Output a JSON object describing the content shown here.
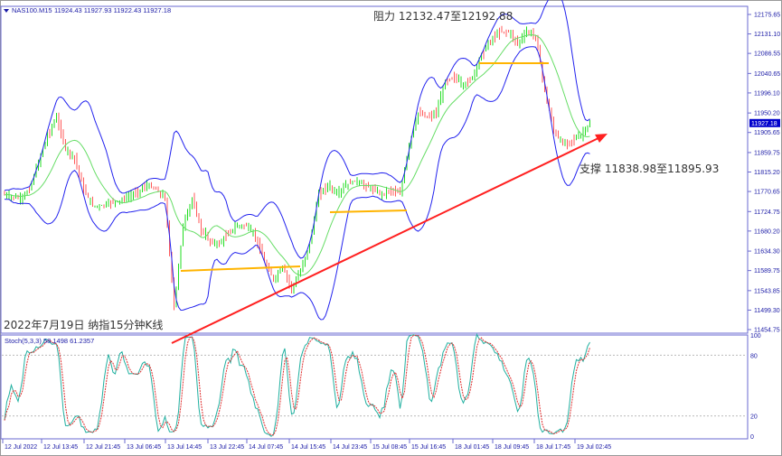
{
  "header": {
    "symbol": "NAS100.M15",
    "ohlc": "11924.43 11927.93 11922.43 11927.18"
  },
  "colors": {
    "bull": "#22dd22",
    "bear": "#ff5a5a",
    "bands": "#2222ee",
    "axis": "#1a1aa6",
    "trend": "#ff2020",
    "level": "#ffb400",
    "stoch_main": "#20b0a0",
    "stoch_signal": "#e03030"
  },
  "chart_data": {
    "type": "candlestick",
    "title": "2022年7月19日 纳指15分钟K线",
    "price_ticks": [
      "12175.65",
      "12131.10",
      "12086.55",
      "12040.65",
      "11996.10",
      "11950.20",
      "11905.65",
      "11859.75",
      "11815.20",
      "11770.65",
      "11724.75",
      "11680.20",
      "11634.30",
      "11589.75",
      "11543.85",
      "11499.30",
      "11454.75"
    ],
    "ylim": [
      11454.75,
      12175.65
    ],
    "current_price": "11927.18",
    "time_ticks": [
      "12 Jul 2022",
      "12 Jul 13:45",
      "12 Jul 21:45",
      "13 Jul 06:45",
      "13 Jul 14:45",
      "13 Jul 22:45",
      "14 Jul 07:45",
      "14 Jul 15:45",
      "14 Jul 23:45",
      "15 Jul 08:45",
      "15 Jul 16:45",
      "18 Jul 01:45",
      "18 Jul 09:45",
      "18 Jul 17:45",
      "19 Jul 02:45"
    ],
    "closes": [
      11764.5,
      11758.4,
      11754.3,
      11774.9,
      11836.9,
      11898.9,
      11940.2,
      11867.9,
      11847.2,
      11774.9,
      11737.7,
      11737.7,
      11746.0,
      11750.1,
      11758.4,
      11770.7,
      11785.2,
      11774.9,
      11754.3,
      11506.4,
      11692.3,
      11754.3,
      11682.0,
      11655.1,
      11651.0,
      11675.8,
      11692.3,
      11692.3,
      11667.5,
      11609.6,
      11568.4,
      11599.3,
      11547.7,
      11589.0,
      11651.0,
      11764.5,
      11785.2,
      11764.5,
      11785.2,
      11795.6,
      11785.2,
      11774.9,
      11764.5,
      11774.9,
      11764.5,
      11878.2,
      11950.5,
      11940.2,
      11950.5,
      12022.8,
      12033.1,
      12012.5,
      12033.1,
      12084.8,
      12115.8,
      12136.4,
      12136.4,
      12109.6,
      12136.4,
      12126.1,
      12002.1,
      11909.2,
      11878.2,
      11888.5,
      11898.9,
      11927.18
    ],
    "annotations": {
      "resistance": "阻力 12132.47至12192.88",
      "support": "支撑 11838.98至11895.93"
    },
    "stoch": {
      "label": "Stoch(5,3,3) 58.1498 61.2357",
      "ticks": [
        "100",
        "80",
        "20",
        "0"
      ],
      "levels": [
        80,
        20
      ]
    }
  }
}
